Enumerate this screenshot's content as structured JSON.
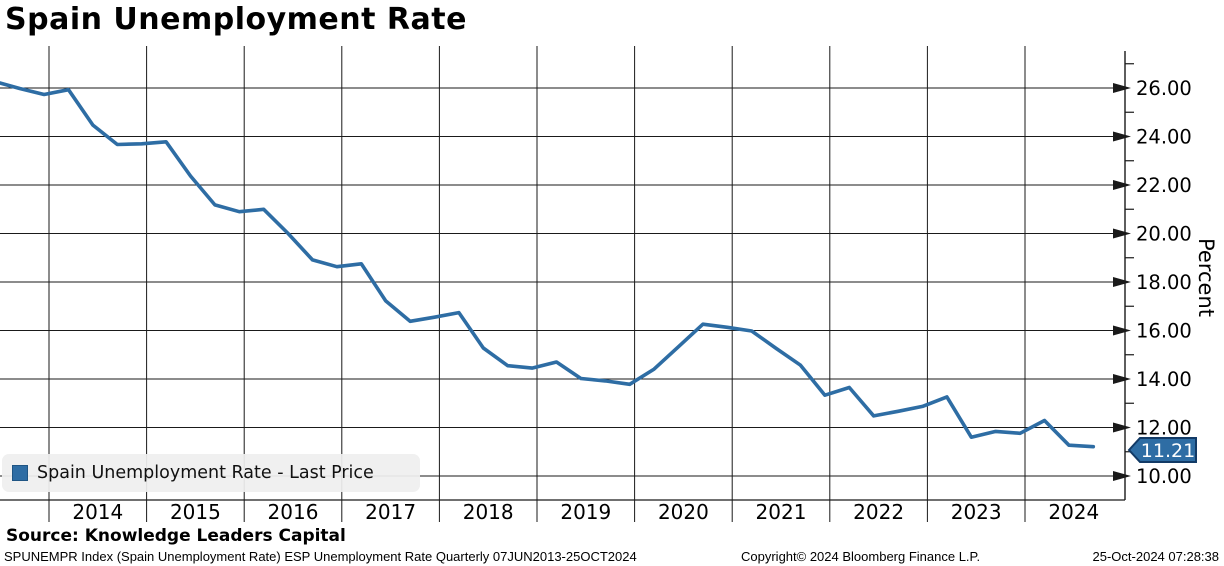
{
  "header": {
    "title": "Spain Unemployment Rate"
  },
  "chart_data": {
    "type": "line",
    "title": "Spain Unemployment Rate",
    "ylabel": "Percent",
    "line_color": "#2e6da4",
    "grid": true,
    "legend_position": "bottom-left",
    "legend": [
      {
        "label": "Spain Unemployment Rate - Last Price",
        "color": "#2e6da4"
      }
    ],
    "last_price": "11.21",
    "ylim": [
      9.0,
      28.3
    ],
    "y_ticks": [
      26,
      24,
      22,
      20,
      18,
      16,
      14,
      12,
      10
    ],
    "x_tick_labels": [
      "2014",
      "2015",
      "2016",
      "2017",
      "2018",
      "2019",
      "2020",
      "2021",
      "2022",
      "2023",
      "2024"
    ],
    "quarters": [
      "2013-Q2",
      "2013-Q3",
      "2013-Q4",
      "2014-Q1",
      "2014-Q2",
      "2014-Q3",
      "2014-Q4",
      "2015-Q1",
      "2015-Q2",
      "2015-Q3",
      "2015-Q4",
      "2016-Q1",
      "2016-Q2",
      "2016-Q3",
      "2016-Q4",
      "2017-Q1",
      "2017-Q2",
      "2017-Q3",
      "2017-Q4",
      "2018-Q1",
      "2018-Q2",
      "2018-Q3",
      "2018-Q4",
      "2019-Q1",
      "2019-Q2",
      "2019-Q3",
      "2019-Q4",
      "2020-Q1",
      "2020-Q2",
      "2020-Q3",
      "2020-Q4",
      "2021-Q1",
      "2021-Q2",
      "2021-Q3",
      "2021-Q4",
      "2022-Q1",
      "2022-Q2",
      "2022-Q3",
      "2022-Q4",
      "2023-Q1",
      "2023-Q2",
      "2023-Q3",
      "2023-Q4",
      "2024-Q1",
      "2024-Q2",
      "2024-Q3"
    ],
    "t": [
      2013.45,
      2013.7,
      2013.95,
      2014.2,
      2014.45,
      2014.7,
      2014.95,
      2015.2,
      2015.45,
      2015.7,
      2015.95,
      2016.2,
      2016.45,
      2016.7,
      2016.95,
      2017.2,
      2017.45,
      2017.7,
      2017.95,
      2018.2,
      2018.45,
      2018.7,
      2018.95,
      2019.2,
      2019.45,
      2019.7,
      2019.95,
      2020.2,
      2020.45,
      2020.7,
      2020.95,
      2021.2,
      2021.45,
      2021.7,
      2021.95,
      2022.2,
      2022.45,
      2022.7,
      2022.95,
      2023.2,
      2023.45,
      2023.7,
      2023.95,
      2024.2,
      2024.45,
      2024.7
    ],
    "values": [
      26.26,
      25.98,
      25.73,
      25.93,
      24.47,
      23.67,
      23.7,
      23.78,
      22.37,
      21.18,
      20.9,
      21.0,
      20.0,
      18.91,
      18.63,
      18.75,
      17.22,
      16.38,
      16.55,
      16.74,
      15.28,
      14.55,
      14.45,
      14.7,
      14.02,
      13.92,
      13.78,
      14.41,
      15.33,
      16.26,
      16.13,
      15.98,
      15.26,
      14.57,
      13.33,
      13.65,
      12.48,
      12.67,
      12.87,
      13.26,
      11.6,
      11.84,
      11.76,
      12.29,
      11.27,
      11.21
    ]
  },
  "footer": {
    "source": "Source: Knowledge Leaders Capital",
    "meta_left": "SPUNEMPR Index (Spain Unemployment Rate) ESP Unemployment Rate  Quarterly 07JUN2013-25OCT2024",
    "meta_center": "Copyright© 2024 Bloomberg Finance L.P.",
    "meta_right": "25-Oct-2024 07:28:38"
  }
}
